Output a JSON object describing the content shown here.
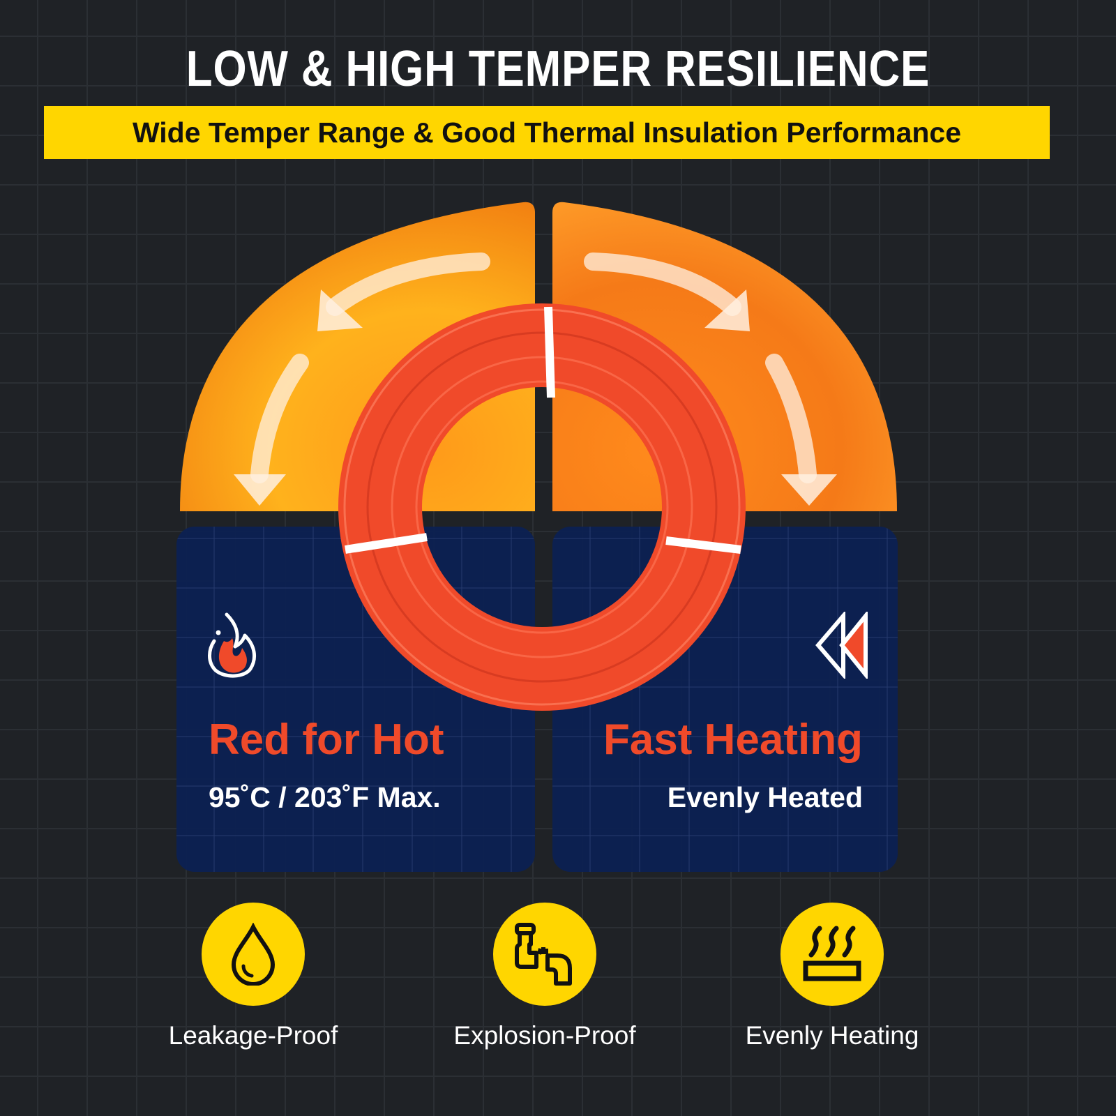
{
  "title": "LOW & HIGH TEMPER RESILIENCE",
  "subtitle": "Wide Temper Range & Good Thermal Insulation Performance",
  "colors": {
    "background": "#1f2226",
    "accent_yellow": "#ffd600",
    "panel_navy": "#0c2152",
    "hot_red": "#f04a2a"
  },
  "panels": [
    {
      "icon": "flame-icon",
      "heading": "Red for Hot",
      "detail": "95˚C / 203˚F Max."
    },
    {
      "icon": "fast-forward-icon",
      "heading": "Fast Heating",
      "detail": "Evenly Heated"
    }
  ],
  "features": [
    {
      "icon": "water-drop-icon",
      "label": "Leakage-Proof"
    },
    {
      "icon": "burst-pipe-icon",
      "label": "Explosion-Proof"
    },
    {
      "icon": "heat-waves-icon",
      "label": "Evenly Heating"
    }
  ]
}
